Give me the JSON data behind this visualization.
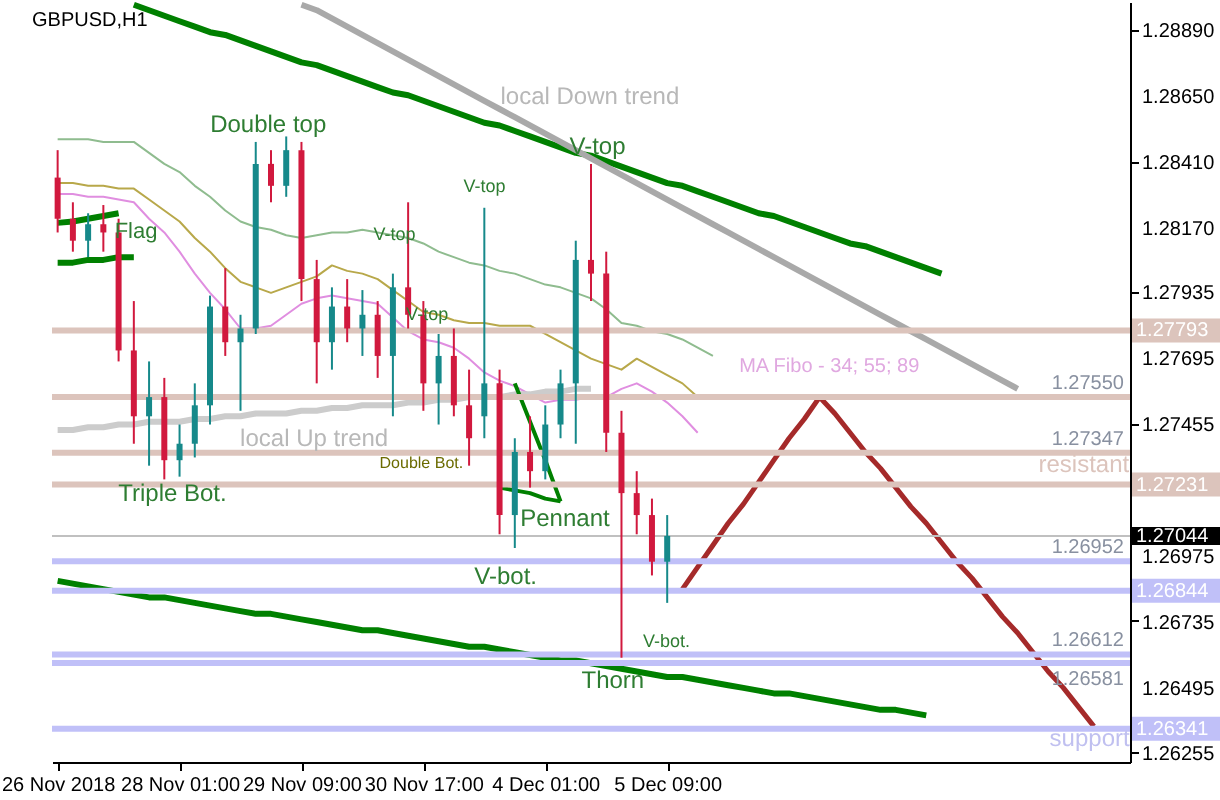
{
  "chart_data": {
    "type": "candlestick",
    "title": "GBPUSD,H1",
    "categories": [
      "26 Nov 2018",
      null,
      null,
      null,
      null,
      null,
      null,
      null,
      "28 Nov 01:00",
      null,
      null,
      null,
      null,
      null,
      null,
      null,
      "29 Nov 09:00",
      null,
      null,
      null,
      null,
      null,
      null,
      null,
      "30 Nov 17:00",
      null,
      null,
      null,
      null,
      null,
      null,
      null,
      "4 Dec 01:00",
      null,
      null,
      null,
      null,
      null,
      null,
      null,
      "5 Dec 09:00",
      null,
      null,
      null,
      null,
      null,
      null,
      null,
      null,
      null,
      null,
      null,
      null,
      null,
      null,
      null,
      null,
      null,
      null,
      null,
      null,
      null,
      null,
      null,
      null,
      null,
      null,
      null,
      null,
      null,
      null
    ],
    "ohlc": [
      [
        1.2835,
        1.2845,
        1.2815,
        1.282
      ],
      [
        1.282,
        1.2826,
        1.2808,
        1.2812
      ],
      [
        1.2812,
        1.2822,
        1.2806,
        1.2818
      ],
      [
        1.2818,
        1.2825,
        1.2808,
        1.2815
      ],
      [
        1.2815,
        1.282,
        1.2768,
        1.2772
      ],
      [
        1.2772,
        1.279,
        1.2738,
        1.2748
      ],
      [
        1.2748,
        1.2768,
        1.273,
        1.2755
      ],
      [
        1.2755,
        1.2762,
        1.2725,
        1.2732
      ],
      [
        1.2732,
        1.2745,
        1.2726,
        1.2738
      ],
      [
        1.2738,
        1.276,
        1.2733,
        1.2752
      ],
      [
        1.2752,
        1.2792,
        1.2745,
        1.2788
      ],
      [
        1.2788,
        1.2802,
        1.277,
        1.2775
      ],
      [
        1.2775,
        1.2785,
        1.275,
        1.278
      ],
      [
        1.278,
        1.2848,
        1.2778,
        1.284
      ],
      [
        1.284,
        1.2845,
        1.2826,
        1.2832
      ],
      [
        1.2832,
        1.285,
        1.2828,
        1.2845
      ],
      [
        1.2845,
        1.2848,
        1.279,
        1.2798
      ],
      [
        1.2798,
        1.2805,
        1.276,
        1.2775
      ],
      [
        1.2775,
        1.2795,
        1.2765,
        1.2788
      ],
      [
        1.2788,
        1.2798,
        1.2775,
        1.278
      ],
      [
        1.278,
        1.2794,
        1.277,
        1.2785
      ],
      [
        1.2785,
        1.279,
        1.2762,
        1.277
      ],
      [
        1.277,
        1.28,
        1.2748,
        1.2795
      ],
      [
        1.2795,
        1.2826,
        1.278,
        1.2785
      ],
      [
        1.2785,
        1.279,
        1.275,
        1.276
      ],
      [
        1.276,
        1.2778,
        1.2745,
        1.277
      ],
      [
        1.277,
        1.278,
        1.2748,
        1.2752
      ],
      [
        1.2752,
        1.2765,
        1.273,
        1.274
      ],
      [
        1.2748,
        1.2824,
        1.274,
        1.276
      ],
      [
        1.276,
        1.2765,
        1.2705,
        1.2712
      ],
      [
        1.2712,
        1.274,
        1.27,
        1.2735
      ],
      [
        1.2735,
        1.2748,
        1.2722,
        1.2728
      ],
      [
        1.2728,
        1.2752,
        1.2725,
        1.2745
      ],
      [
        1.2745,
        1.2765,
        1.274,
        1.276
      ],
      [
        1.276,
        1.2812,
        1.2738,
        1.2805
      ],
      [
        1.2805,
        1.284,
        1.279,
        1.28
      ],
      [
        1.28,
        1.2808,
        1.2735,
        1.2742
      ],
      [
        1.2742,
        1.275,
        1.266,
        1.272
      ],
      [
        1.272,
        1.2728,
        1.2705,
        1.2712
      ],
      [
        1.2712,
        1.2718,
        1.269,
        1.2695
      ],
      [
        1.2695,
        1.2712,
        1.268,
        1.27044
      ],
      null,
      null,
      null,
      null,
      null,
      null,
      null,
      null,
      null,
      null,
      null,
      null,
      null,
      null,
      null,
      null,
      null,
      null,
      null,
      null,
      null,
      null,
      null,
      null,
      null,
      null,
      null,
      null,
      null,
      null
    ],
    "colors": [
      "#d1193e",
      "#d1193e",
      "#16898a",
      "#d1193e",
      "#d1193e",
      "#d1193e",
      "#16898a",
      "#d1193e",
      "#16898a",
      "#16898a",
      "#16898a",
      "#d1193e",
      "#16898a",
      "#16898a",
      "#d1193e",
      "#16898a",
      "#d1193e",
      "#d1193e",
      "#16898a",
      "#d1193e",
      "#16898a",
      "#d1193e",
      "#16898a",
      "#d1193e",
      "#d1193e",
      "#16898a",
      "#d1193e",
      "#d1193e",
      "#16898a",
      "#d1193e",
      "#16898a",
      "#d1193e",
      "#16898a",
      "#16898a",
      "#16898a",
      "#d1193e",
      "#d1193e",
      "#d1193e",
      "#d1193e",
      "#d1193e",
      "#16898a",
      null,
      null,
      null,
      null,
      null,
      null,
      null,
      null,
      null,
      null,
      null,
      null,
      null,
      null,
      null,
      null,
      null,
      null,
      null,
      null,
      null,
      null,
      null,
      null,
      null,
      null,
      null,
      null,
      null,
      null
    ],
    "series": [
      {
        "type": "line",
        "color": "#8fbc8f",
        "values": [
          1.2849,
          1.2849,
          1.2849,
          1.2848,
          1.2848,
          1.2848,
          1.2844,
          1.284,
          1.2837,
          1.2832,
          1.2828,
          1.2823,
          1.2819,
          1.2817,
          1.2816,
          1.2814,
          1.2813,
          1.2814,
          1.2815,
          1.2815,
          1.2816,
          1.2815,
          1.2814,
          1.2813,
          1.2811,
          1.2808,
          1.2806,
          1.2804,
          1.2803,
          1.2801,
          1.28,
          1.2798,
          1.2796,
          1.2795,
          1.2793,
          1.2791,
          1.2787,
          1.2782,
          1.2781,
          1.2779,
          1.2778,
          1.2776,
          1.2773,
          1.277,
          null,
          null,
          null,
          null,
          null,
          null,
          null,
          null,
          null,
          null,
          null,
          null,
          null,
          null,
          null,
          null,
          null,
          null,
          null,
          null,
          null,
          null,
          null,
          null,
          null,
          null,
          null
        ]
      },
      {
        "type": "line",
        "color": "#b8a84a",
        "values": [
          1.2833,
          1.2833,
          1.2832,
          1.2832,
          1.2831,
          1.2831,
          1.2827,
          1.2823,
          1.2819,
          1.2813,
          1.2808,
          1.2802,
          1.2797,
          1.2795,
          1.2793,
          1.2795,
          1.2797,
          1.2799,
          1.2803,
          1.2801,
          1.28,
          1.2798,
          1.2794,
          1.279,
          1.2786,
          1.2785,
          1.2783,
          1.2782,
          1.2782,
          1.2781,
          1.2781,
          1.2781,
          1.2778,
          1.2775,
          1.2772,
          1.2769,
          1.2767,
          1.2765,
          1.2769,
          1.2766,
          1.2763,
          1.276,
          1.2755,
          null,
          null,
          null,
          null,
          null,
          null,
          null,
          null,
          null,
          null,
          null,
          null,
          null,
          null,
          null,
          null,
          null,
          null,
          null,
          null,
          null,
          null,
          null,
          null,
          null,
          null,
          null,
          null
        ]
      },
      {
        "type": "line",
        "color": "#e08ee0",
        "values": [
          1.2829,
          1.2829,
          1.2828,
          1.2828,
          1.2827,
          1.2826,
          1.282,
          1.2815,
          1.2808,
          1.28,
          1.2793,
          1.2787,
          1.278,
          1.278,
          1.2781,
          1.2785,
          1.2789,
          1.2791,
          1.2792,
          1.2791,
          1.279,
          1.2789,
          1.2784,
          1.2779,
          1.2776,
          1.2775,
          1.2773,
          1.2769,
          1.2764,
          1.2761,
          1.2759,
          1.2756,
          1.2753,
          1.2754,
          1.2754,
          1.2755,
          1.2755,
          1.2758,
          1.276,
          1.2757,
          1.2753,
          1.2748,
          1.2742,
          null,
          null,
          null,
          null,
          null,
          null,
          null,
          null,
          null,
          null,
          null,
          null,
          null,
          null,
          null,
          null,
          null,
          null,
          null,
          null,
          null,
          null,
          null,
          null,
          null,
          null,
          null,
          null
        ]
      },
      {
        "type": "line",
        "color": "#008000",
        "values": [
          null,
          null,
          null,
          null,
          null,
          1.2898,
          1.2896,
          1.2894,
          1.2892,
          1.289,
          1.2888,
          1.2887,
          1.2885,
          1.2883,
          1.2881,
          1.2879,
          1.2877,
          1.2876,
          1.2874,
          1.2872,
          1.287,
          1.2868,
          1.2866,
          1.2865,
          1.2863,
          1.2861,
          1.2859,
          1.2857,
          1.2855,
          1.2854,
          1.2852,
          1.285,
          1.2848,
          1.2846,
          1.2844,
          1.2843,
          1.2841,
          1.2839,
          1.2837,
          1.2835,
          1.2833,
          1.2832,
          1.283,
          1.2828,
          1.2826,
          1.2824,
          1.2822,
          1.2821,
          1.2819,
          1.2817,
          1.2815,
          1.2813,
          1.2811,
          1.281,
          1.2808,
          1.2806,
          1.2804,
          1.2802,
          1.28,
          null,
          null,
          null,
          null,
          null,
          null,
          null,
          null,
          null,
          null,
          null,
          null
        ]
      },
      {
        "type": "line",
        "color": "#a9a9a9",
        "values": [
          null,
          null,
          null,
          null,
          null,
          null,
          null,
          null,
          null,
          null,
          null,
          null,
          null,
          null,
          null,
          null,
          1.2898,
          1.2896,
          1.2893,
          1.289,
          1.2887,
          1.2884,
          1.2881,
          1.2878,
          1.2875,
          1.2872,
          1.2869,
          1.2866,
          1.2863,
          1.286,
          1.2857,
          1.2854,
          1.2851,
          1.2848,
          1.2845,
          1.2842,
          1.2839,
          1.2836,
          1.2833,
          1.283,
          1.2827,
          1.2824,
          1.2821,
          1.2818,
          1.2815,
          1.2812,
          1.2809,
          1.2806,
          1.2803,
          1.28,
          1.2797,
          1.2794,
          1.2791,
          1.2788,
          1.2785,
          1.2782,
          1.2779,
          1.2776,
          1.2773,
          1.277,
          1.2767,
          1.2764,
          1.2761,
          1.2758,
          null,
          null,
          null,
          null,
          null,
          null,
          null
        ]
      },
      {
        "type": "line",
        "color": "#cccccc",
        "values": [
          1.2743,
          1.2743,
          1.2744,
          1.2744,
          1.2745,
          1.2745,
          1.2746,
          1.2746,
          1.2746,
          1.2747,
          1.2747,
          1.2748,
          1.2748,
          1.2749,
          1.2749,
          1.2749,
          1.275,
          1.275,
          1.2751,
          1.2751,
          1.2752,
          1.2752,
          1.2752,
          1.2753,
          1.2753,
          1.2754,
          1.2754,
          1.2755,
          1.2755,
          1.2755,
          1.2756,
          1.2756,
          1.2757,
          1.2757,
          1.2758,
          1.2758,
          null,
          null,
          null,
          null,
          null,
          null,
          null,
          null,
          null,
          null,
          null,
          null,
          null,
          null,
          null,
          null,
          null,
          null,
          null,
          null,
          null,
          null,
          null,
          null,
          null,
          null,
          null,
          null,
          null,
          null,
          null,
          null,
          null,
          null,
          null
        ]
      },
      {
        "type": "line",
        "color": "#008000",
        "values": [
          1.28185,
          1.2819,
          1.282,
          1.2821,
          1.2822,
          null,
          null,
          null,
          null,
          null,
          null,
          null,
          null,
          null,
          null,
          null,
          null,
          null,
          null,
          null,
          null,
          null,
          null,
          null,
          null,
          null,
          null,
          null,
          null,
          null,
          null,
          null,
          null,
          null,
          null,
          null,
          null,
          null,
          null,
          null,
          null,
          null,
          null,
          null,
          null,
          null,
          null,
          null,
          null,
          null,
          null,
          null,
          null,
          null,
          null,
          null,
          null,
          null,
          null,
          null,
          null,
          null,
          null,
          null,
          null,
          null,
          null,
          null,
          null,
          null,
          null
        ]
      },
      {
        "type": "line",
        "color": "#008000",
        "values": [
          1.2804,
          1.2804,
          1.2805,
          1.2805,
          1.2806,
          1.2806,
          null,
          null,
          null,
          null,
          null,
          null,
          null,
          null,
          null,
          null,
          null,
          null,
          null,
          null,
          null,
          null,
          null,
          null,
          null,
          null,
          null,
          null,
          null,
          null,
          null,
          null,
          null,
          null,
          null,
          null,
          null,
          null,
          null,
          null,
          null,
          null,
          null,
          null,
          null,
          null,
          null,
          null,
          null,
          null,
          null,
          null,
          null,
          null,
          null,
          null,
          null,
          null,
          null,
          null,
          null,
          null,
          null,
          null,
          null,
          null,
          null,
          null,
          null,
          null,
          null
        ]
      },
      {
        "type": "line",
        "color": "#008000",
        "values": [
          1.2688,
          1.2687,
          1.2686,
          1.2685,
          1.2684,
          1.2683,
          1.2682,
          1.2682,
          1.2681,
          1.268,
          1.2679,
          1.2678,
          1.2677,
          1.2676,
          1.2676,
          1.2675,
          1.2674,
          1.2673,
          1.2672,
          1.2671,
          1.267,
          1.267,
          1.2669,
          1.2668,
          1.2667,
          1.2666,
          1.2665,
          1.2664,
          1.2664,
          1.2663,
          1.2662,
          1.2661,
          1.266,
          1.2659,
          1.2659,
          1.2658,
          1.2657,
          1.2656,
          1.2655,
          1.2654,
          1.2653,
          1.2653,
          1.2652,
          1.2651,
          1.265,
          1.2649,
          1.2648,
          1.2647,
          1.2647,
          1.2646,
          1.2645,
          1.2644,
          1.2643,
          1.2642,
          1.2641,
          1.2641,
          1.264,
          1.2639,
          null,
          null,
          null,
          null,
          null,
          null,
          null,
          null,
          null,
          null,
          null,
          null,
          null
        ]
      },
      {
        "type": "line",
        "color": "#008000",
        "values": [
          null,
          null,
          null,
          null,
          null,
          null,
          null,
          null,
          null,
          null,
          null,
          null,
          null,
          null,
          null,
          null,
          null,
          null,
          null,
          null,
          null,
          null,
          null,
          null,
          null,
          null,
          null,
          null,
          null,
          null,
          1.276,
          1.2746,
          1.2732,
          1.2717,
          null,
          null,
          null,
          null,
          null,
          null,
          null,
          null,
          null,
          null,
          null,
          null,
          null,
          null,
          null,
          null,
          null,
          null,
          null,
          null,
          null,
          null,
          null,
          null,
          null,
          null,
          null,
          null,
          null,
          null,
          null,
          null,
          null,
          null,
          null,
          null,
          null
        ]
      },
      {
        "type": "line",
        "color": "#008000",
        "values": [
          null,
          null,
          null,
          null,
          null,
          null,
          null,
          null,
          null,
          null,
          null,
          null,
          null,
          null,
          null,
          null,
          null,
          null,
          null,
          null,
          null,
          null,
          null,
          null,
          null,
          null,
          null,
          null,
          null,
          1.2722,
          1.2721,
          1.272,
          1.2718,
          1.2717,
          null,
          null,
          null,
          null,
          null,
          null,
          null,
          null,
          null,
          null,
          null,
          null,
          null,
          null,
          null,
          null,
          null,
          null,
          null,
          null,
          null,
          null,
          null,
          null,
          null,
          null,
          null,
          null,
          null,
          null,
          null,
          null,
          null,
          null,
          null,
          null,
          null
        ]
      },
      {
        "type": "line",
        "color": "#a52a2a",
        "values": [
          null,
          null,
          null,
          null,
          null,
          null,
          null,
          null,
          null,
          null,
          null,
          null,
          null,
          null,
          null,
          null,
          null,
          null,
          null,
          null,
          null,
          null,
          null,
          null,
          null,
          null,
          null,
          null,
          null,
          null,
          null,
          null,
          null,
          null,
          null,
          null,
          null,
          null,
          null,
          null,
          null,
          1.2685,
          1.2693,
          1.2701,
          1.2709,
          1.2716,
          1.2724,
          1.2732,
          1.274,
          1.2747,
          1.2755,
          1.2749,
          1.2742,
          1.2735,
          1.2729,
          1.2722,
          1.2715,
          1.2709,
          1.2702,
          1.2695,
          1.2689,
          1.2682,
          1.2675,
          1.2669,
          1.2662,
          1.2655,
          1.2649,
          1.2642,
          1.2635,
          null,
          null
        ]
      }
    ],
    "ref_lines": [
      {
        "axis": "y",
        "value": 1.27793,
        "label": "1.27793",
        "color": "#dcc4bc"
      },
      {
        "axis": "y",
        "value": 1.2755,
        "label": "1.27550",
        "color": "#dcc4bc"
      },
      {
        "axis": "y",
        "value": 1.27347,
        "label": "1.27347",
        "color": "#dcc4bc"
      },
      {
        "axis": "y",
        "value": 1.27231,
        "label": "1.27231",
        "color": "#dcc4bc"
      },
      {
        "axis": "y",
        "value": 1.27044,
        "label": "1.27044",
        "color": "#c0c0c0"
      },
      {
        "axis": "y",
        "value": 1.26952,
        "label": "1.26952",
        "color": "#c0c0f8"
      },
      {
        "axis": "y",
        "value": 1.26844,
        "label": "1.26844",
        "color": "#c0c0f8"
      },
      {
        "axis": "y",
        "value": 1.26612,
        "label": "1.26612",
        "color": "#c0c0f8"
      },
      {
        "axis": "y",
        "value": 1.26581,
        "label": "1.26581",
        "color": "#c0c0f8"
      },
      {
        "axis": "y",
        "value": 1.26341,
        "label": "1.26341",
        "color": "#c0c0f8"
      }
    ],
    "annotations": [
      "local Down trend",
      "Double top",
      "Flag",
      "V-top",
      {
        "text": "V-top",
        "y": 1.2824
      },
      {
        "text": "V-top",
        "y": 1.2778
      },
      {
        "text": "V-top",
        "y": 1.284
      },
      "MA Fibo - 34; 55; 89",
      {
        "text": "Triple Bot.",
        "y": 1.2725
      },
      "local Up trend",
      "Double Bot.",
      {
        "text": "Pennant",
        "y": 1.27174
      },
      {
        "text": "V-bot.",
        "y": 1.27
      },
      {
        "text": "V-bot.",
        "y": 1.268
      },
      {
        "text": "Thorn",
        "y": 1.266
      },
      "resistant",
      "support"
    ],
    "ylim": [
      1.2622,
      1.2899
    ],
    "yticks": [
      {
        "value": 1.2889,
        "label": "1.28890"
      },
      {
        "value": 1.2865,
        "label": "1.28650"
      },
      {
        "value": 1.2841,
        "label": "1.28410"
      },
      {
        "value": 1.2817,
        "label": "1.28170"
      },
      {
        "value": 1.27935,
        "label": "1.27935"
      },
      {
        "value": 1.27695,
        "label": "1.27695"
      },
      {
        "value": 1.27455,
        "label": "1.27455"
      },
      {
        "value": 1.26975,
        "label": "1.26975"
      },
      {
        "value": 1.26735,
        "label": "1.26735"
      },
      {
        "value": 1.26495,
        "label": "1.26495"
      },
      {
        "value": 1.26255,
        "label": "1.26255"
      }
    ]
  }
}
